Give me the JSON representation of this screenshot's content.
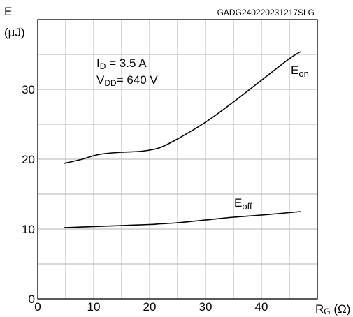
{
  "chart_data": {
    "type": "line",
    "code": "GADG240220231217SLG",
    "ylabel": {
      "main": "E",
      "unit": "(µJ)"
    },
    "xlabel": {
      "main": "R",
      "sub": "G",
      "unit": " (Ω)"
    },
    "xlim": [
      0,
      50
    ],
    "ylim": [
      0,
      40
    ],
    "xticks": [
      "0",
      "10",
      "20",
      "30",
      "40"
    ],
    "yticks": [
      "0",
      "10",
      "20",
      "30"
    ],
    "grid": true,
    "conditions": [
      {
        "main": "I",
        "sub": "D",
        "rest": " = 3.5 A"
      },
      {
        "main": "V",
        "sub": "DD",
        "rest": "= 640 V"
      }
    ],
    "series": [
      {
        "name": {
          "main": "E",
          "sub": "on"
        },
        "x": [
          4.7,
          8,
          10,
          12,
          15,
          18,
          20,
          22,
          25,
          30,
          35,
          40,
          45,
          47
        ],
        "y": [
          19.4,
          20.0,
          20.5,
          20.8,
          21.0,
          21.1,
          21.3,
          21.7,
          22.9,
          25.3,
          28.2,
          31.3,
          34.4,
          35.4
        ]
      },
      {
        "name": {
          "main": "E",
          "sub": "off"
        },
        "x": [
          4.7,
          10,
          15,
          20,
          22,
          25,
          30,
          35,
          40,
          47
        ],
        "y": [
          10.2,
          10.35,
          10.5,
          10.65,
          10.75,
          10.9,
          11.3,
          11.7,
          12.0,
          12.5
        ]
      }
    ]
  }
}
